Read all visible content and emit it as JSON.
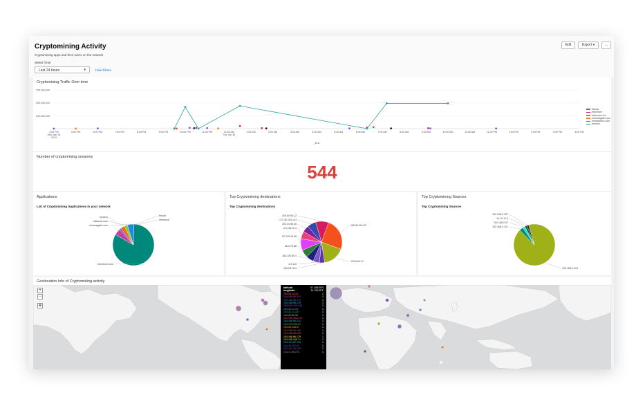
{
  "dashboard": {
    "title": "Cryptomining Activity",
    "subtitle": "Cryptomining apps and their users on the network",
    "time_label": "Select Time",
    "time_value": "Last 24 hours",
    "hide_filters": "Hide Filters",
    "edit_label": "Edit",
    "export_label": "Export",
    "more_label": "..."
  },
  "traffic": {
    "title": "Cryptomining Traffic Over time",
    "xlabel": "_time",
    "chart_data": {
      "type": "line",
      "title": "Cryptomining Traffic Over time",
      "xlabel": "_time",
      "ylabel": "",
      "y_ticks": [
        "750,000,000",
        "500,000,000",
        "250,000,000"
      ],
      "x_ticks": [
        "4:00 PM\nMon Jan 15\n2024",
        "5:00 PM",
        "6:00 PM",
        "7:00 PM",
        "8:00 PM",
        "9:00 PM",
        "10:00 PM",
        "11:00 PM",
        "12:00 AM\nTue Jan 16",
        "1:00 AM",
        "2:00 AM",
        "3:00 AM",
        "4:00 AM",
        "5:00 AM",
        "6:00 AM",
        "7:00 AM",
        "8:00 AM",
        "9:00 AM",
        "10:00 AM",
        "11:00 AM",
        "12:00 PM",
        "1:00 PM",
        "2:00 PM",
        "3:00 PM",
        "4:00 PM"
      ],
      "ylim": [
        0,
        750000000
      ],
      "legend_position": "right",
      "series": [
        {
          "name": "bitcoin",
          "color": "#7b56db",
          "points": [
            [
              0,
              0
            ],
            [
              2,
              5000000
            ],
            [
              6.2,
              15000000
            ],
            [
              7,
              10000000
            ],
            [
              13.5,
              4000000
            ],
            [
              17.2,
              5000000
            ],
            [
              20.2,
              3000000
            ]
          ]
        },
        {
          "name": "ethereum",
          "color": "#dd1c8e",
          "points": [
            [
              5.5,
              3000000
            ],
            [
              6.5,
              15000000
            ],
            [
              8.5,
              50000000
            ],
            [
              9.5,
              10000000
            ],
            [
              14.3,
              20000000
            ],
            [
              17.1,
              8000000
            ]
          ]
        },
        {
          "name": "ethereum-txt",
          "color": "#1a1c20",
          "points": [
            [
              6.4,
              8000000
            ],
            [
              9.7,
              5000000
            ],
            [
              15.4,
              5000000
            ]
          ]
        },
        {
          "name": "mineralgate-com",
          "color": "#f58220",
          "points": [
            [
              1,
              2000000
            ],
            [
              5.5,
              4000000
            ],
            [
              7.5,
              3000000
            ]
          ]
        },
        {
          "name": "minesworm-com",
          "color": "#e34a33",
          "points": [
            [
              5.6,
              2000000
            ],
            [
              14.6,
              30000000
            ]
          ]
        },
        {
          "name": "mxnxrs",
          "color": "#2fa09e",
          "points": [
            [
              5.5,
              0
            ],
            [
              6,
              420000000
            ],
            [
              6.6,
              0
            ],
            [
              8.5,
              440000000
            ],
            [
              14.3,
              0
            ],
            [
              15.2,
              490000000
            ],
            [
              18,
              490000000
            ]
          ]
        }
      ]
    }
  },
  "sessions": {
    "title": "Number of cryptomining sessions",
    "value": "544"
  },
  "applications": {
    "title": "Applications",
    "subtitle": "List of Cryptomining Applications in your network",
    "chart_data": {
      "type": "pie",
      "slices": [
        {
          "label": "ethereum-com",
          "value": 83,
          "color": "#00897b"
        },
        {
          "label": "bitcoin",
          "value": 5,
          "color": "#c43ea6"
        },
        {
          "label": "ethereum",
          "value": 1.5,
          "color": "#7e57c2"
        },
        {
          "label": "monero",
          "value": 3,
          "color": "#ef6c00"
        },
        {
          "label": "stikwork-com",
          "value": 2.5,
          "color": "#8bc34a"
        },
        {
          "label": "mineralgate-com",
          "value": 5,
          "color": "#1e88e5"
        }
      ]
    }
  },
  "destinations": {
    "title": "Top Cryptomining destinations",
    "subtitle": "Top Cryptomining destinations",
    "chart_data": {
      "type": "pie",
      "slices": [
        {
          "label": "185.80.96.122",
          "value": 25,
          "color": "#f4511e"
        },
        {
          "label": "103.6.64.27",
          "value": 17,
          "color": "#9fb117"
        },
        {
          "label": "206.28.76.3",
          "value": 4,
          "color": "#5e35b1"
        },
        {
          "label": "3.2.119",
          "value": 5,
          "color": "#7e57c2"
        },
        {
          "label": "185.226.89.3",
          "value": 6,
          "color": "#1a237e"
        },
        {
          "label": "66.6.78.88",
          "value": 6,
          "color": "#2e7d32"
        },
        {
          "label": "57.229.28.56",
          "value": 9,
          "color": "#e040fb"
        },
        {
          "label": "211.36.20.3",
          "value": 6,
          "color": "#ec407a"
        },
        {
          "label": "203.34.98.48",
          "value": 5,
          "color": "#7b1fa2"
        },
        {
          "label": "172.30.193.124",
          "value": 7,
          "color": "#3949ab"
        },
        {
          "label": "185.80.96.12",
          "value": 10,
          "color": "#d81b60"
        }
      ]
    }
  },
  "sources": {
    "title": "Top Cryptomining Sources",
    "subtitle": "Top Cryptomining Sources",
    "chart_data": {
      "type": "pie",
      "slices": [
        {
          "label": "192.168.0.124",
          "value": 92,
          "color": "#9fb117"
        },
        {
          "label": "192.168.0.101",
          "value": 3,
          "color": "#00897b"
        },
        {
          "label": "192.168.0.47",
          "value": 2,
          "color": "#1de9b6"
        },
        {
          "label": "10.10.11.5",
          "value": 1.5,
          "color": "#004d40"
        },
        {
          "label": "192.168.0.167",
          "value": 1.5,
          "color": "#263238"
        }
      ]
    }
  },
  "geo": {
    "title": "Geolocation Info of Cryptomining activity",
    "zoom_in": "+",
    "zoom_out": "−",
    "locate": "⊕",
    "tooltip": {
      "latitude_label": "latitude:",
      "latitude_value": "57.15915°N",
      "longitude_label": "longitude:",
      "longitude_value": "14.76115°E",
      "rows": [
        {
          "ip": "104.26.15.14",
          "count": "1",
          "color": "#ff7043"
        },
        {
          "ip": "104.166.96.222",
          "count": "1",
          "color": "#ab47bc"
        },
        {
          "ip": "104.166.96.173",
          "count": "1",
          "color": "#5c6bc0"
        },
        {
          "ip": "104.166.96.175",
          "count": "1",
          "color": "#26c6da"
        },
        {
          "ip": "185.209.196.186",
          "count": "1",
          "color": "#7e57c2"
        },
        {
          "ip": "104.26.14.14",
          "count": "1",
          "color": "#42a5f5"
        },
        {
          "ip": "104.26.14.167",
          "count": "1",
          "color": "#26a69a"
        },
        {
          "ip": "104.26.85.39",
          "count": "1",
          "color": "#9ccc65"
        },
        {
          "ip": "104.169.166.210",
          "count": "1",
          "color": "#ec407a"
        },
        {
          "ip": "104.166.96.221",
          "count": "1",
          "color": "#29b6f6"
        },
        {
          "ip": "104.125.208.92",
          "count": "1",
          "color": "#66bb6a"
        },
        {
          "ip": "104.56.235.97",
          "count": "1",
          "color": "#ffa726"
        },
        {
          "ip": "104.166.96.180",
          "count": "1",
          "color": "#8d6e63"
        },
        {
          "ip": "104.166.85.229",
          "count": "1",
          "color": "#ef5350"
        },
        {
          "ip": "104.166.96.179",
          "count": "1",
          "color": "#ffee58"
        },
        {
          "ip": "104.169.166.71",
          "count": "1",
          "color": "#d4e157"
        },
        {
          "ip": "104.134.87.199",
          "count": "1",
          "color": "#26c6da"
        },
        {
          "ip": "104.26.167.97",
          "count": "1",
          "color": "#5c6bc0"
        },
        {
          "ip": "141.101.10.132",
          "count": "1",
          "color": "#ab47bc"
        },
        {
          "ip": "104.21.86.223",
          "count": "1",
          "color": "#78909c"
        }
      ]
    }
  }
}
